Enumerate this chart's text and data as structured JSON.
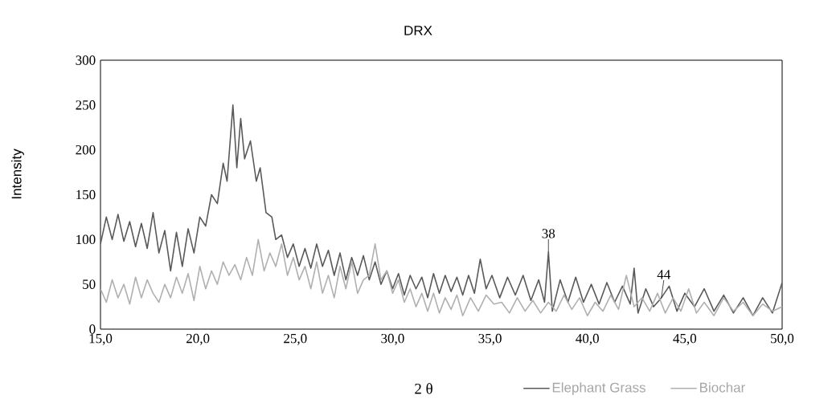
{
  "chart_data": {
    "type": "line",
    "title": "DRX",
    "xlabel": "2 θ",
    "ylabel": "Intensity",
    "xlim": [
      15,
      50
    ],
    "ylim": [
      0,
      300
    ],
    "xticks": [
      {
        "value": 15,
        "label": "15,0"
      },
      {
        "value": 20,
        "label": "20,0"
      },
      {
        "value": 25,
        "label": "25,0"
      },
      {
        "value": 30,
        "label": "30,0"
      },
      {
        "value": 35,
        "label": "35,0"
      },
      {
        "value": 40,
        "label": "40,0"
      },
      {
        "value": 45,
        "label": "45,0"
      },
      {
        "value": 50,
        "label": "50,0"
      }
    ],
    "yticks": [
      0,
      50,
      100,
      150,
      200,
      250,
      300
    ],
    "grid": false,
    "legend": "bottom",
    "marker": "none",
    "line_style": "solid",
    "annotations": [
      {
        "text": "38",
        "x": 38,
        "y": 86
      },
      {
        "text": "44",
        "x": 43.8,
        "y": 35
      }
    ],
    "series": [
      {
        "name": "Elephant Grass",
        "color": "#595959",
        "x": [
          15.0,
          15.3,
          15.6,
          15.9,
          16.2,
          16.5,
          16.8,
          17.1,
          17.4,
          17.7,
          18.0,
          18.3,
          18.6,
          18.9,
          19.2,
          19.5,
          19.8,
          20.1,
          20.4,
          20.7,
          21.0,
          21.3,
          21.5,
          21.8,
          22.0,
          22.2,
          22.4,
          22.7,
          23.0,
          23.2,
          23.5,
          23.8,
          24.0,
          24.3,
          24.6,
          24.9,
          25.2,
          25.5,
          25.8,
          26.1,
          26.4,
          26.7,
          27.0,
          27.3,
          27.6,
          27.9,
          28.2,
          28.5,
          28.8,
          29.1,
          29.4,
          29.7,
          30.0,
          30.3,
          30.6,
          30.9,
          31.2,
          31.5,
          31.8,
          32.1,
          32.4,
          32.7,
          33.0,
          33.3,
          33.6,
          33.9,
          34.2,
          34.5,
          34.8,
          35.1,
          35.5,
          35.9,
          36.3,
          36.7,
          37.1,
          37.5,
          37.8,
          38.0,
          38.2,
          38.6,
          39.0,
          39.4,
          39.8,
          40.2,
          40.6,
          41.0,
          41.4,
          41.8,
          42.2,
          42.4,
          42.6,
          43.0,
          43.4,
          43.8,
          44.2,
          44.6,
          45.0,
          45.5,
          46.0,
          46.5,
          47.0,
          47.5,
          48.0,
          48.5,
          49.0,
          49.5,
          50.0
        ],
        "values": [
          95,
          125,
          100,
          128,
          98,
          120,
          92,
          118,
          90,
          130,
          85,
          110,
          65,
          108,
          70,
          112,
          85,
          125,
          115,
          150,
          140,
          185,
          165,
          250,
          180,
          235,
          190,
          210,
          165,
          180,
          130,
          125,
          100,
          105,
          80,
          95,
          70,
          90,
          68,
          95,
          70,
          88,
          60,
          85,
          55,
          80,
          60,
          82,
          55,
          75,
          50,
          65,
          45,
          62,
          38,
          60,
          45,
          58,
          35,
          62,
          40,
          60,
          42,
          58,
          38,
          60,
          40,
          78,
          45,
          60,
          35,
          58,
          38,
          60,
          32,
          55,
          30,
          86,
          20,
          55,
          30,
          58,
          30,
          50,
          28,
          52,
          30,
          48,
          28,
          68,
          18,
          45,
          25,
          35,
          48,
          20,
          40,
          25,
          45,
          20,
          38,
          18,
          35,
          15,
          35,
          18,
          52
        ]
      },
      {
        "name": "Biochar",
        "color": "#b0b0b0",
        "x": [
          15.0,
          15.3,
          15.6,
          15.9,
          16.2,
          16.5,
          16.8,
          17.1,
          17.4,
          17.7,
          18.0,
          18.3,
          18.6,
          18.9,
          19.2,
          19.5,
          19.8,
          20.1,
          20.4,
          20.7,
          21.0,
          21.3,
          21.6,
          21.9,
          22.2,
          22.5,
          22.8,
          23.1,
          23.4,
          23.7,
          24.0,
          24.3,
          24.6,
          24.9,
          25.2,
          25.5,
          25.8,
          26.1,
          26.4,
          26.7,
          27.0,
          27.3,
          27.6,
          27.9,
          28.2,
          28.5,
          28.8,
          29.1,
          29.4,
          29.7,
          30.0,
          30.3,
          30.6,
          30.9,
          31.2,
          31.5,
          31.8,
          32.1,
          32.4,
          32.7,
          33.0,
          33.3,
          33.6,
          34.0,
          34.4,
          34.8,
          35.2,
          35.6,
          36.0,
          36.4,
          36.8,
          37.2,
          37.6,
          38.0,
          38.4,
          38.8,
          39.2,
          39.6,
          40.0,
          40.4,
          40.8,
          41.2,
          41.6,
          42.0,
          42.4,
          42.8,
          43.2,
          43.6,
          44.0,
          44.4,
          44.8,
          45.2,
          45.6,
          46.0,
          46.5,
          47.0,
          47.5,
          48.0,
          48.5,
          49.0,
          49.5,
          50.0
        ],
        "values": [
          45,
          30,
          55,
          35,
          50,
          28,
          58,
          35,
          55,
          40,
          30,
          50,
          35,
          58,
          40,
          62,
          32,
          70,
          45,
          65,
          50,
          75,
          60,
          72,
          55,
          80,
          60,
          100,
          65,
          85,
          70,
          95,
          60,
          80,
          55,
          70,
          45,
          75,
          40,
          60,
          35,
          70,
          45,
          75,
          40,
          55,
          60,
          95,
          55,
          65,
          40,
          55,
          30,
          45,
          25,
          40,
          20,
          40,
          18,
          35,
          22,
          38,
          15,
          35,
          20,
          38,
          28,
          30,
          18,
          35,
          20,
          32,
          18,
          30,
          20,
          38,
          22,
          35,
          15,
          30,
          20,
          38,
          22,
          60,
          25,
          35,
          20,
          40,
          18,
          35,
          20,
          45,
          18,
          30,
          15,
          35,
          20,
          30,
          15,
          28,
          20,
          25
        ]
      }
    ]
  }
}
